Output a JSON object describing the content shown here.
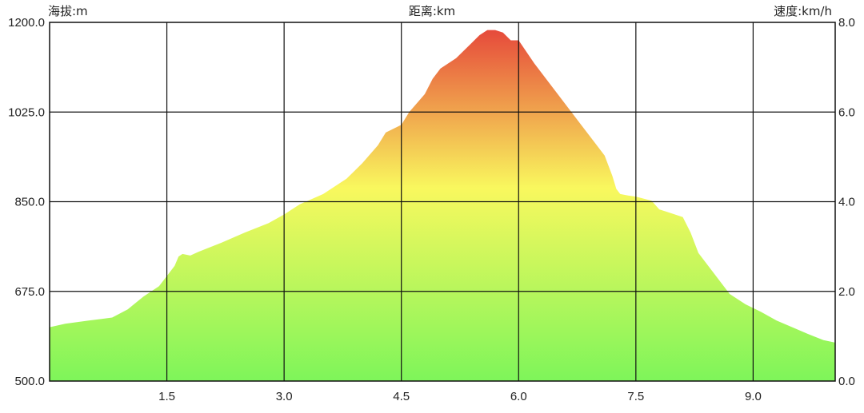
{
  "chart_data": {
    "type": "area",
    "left_axis_label": "海拔:m",
    "x_axis_label": "距离:km",
    "right_axis_label": "速度:km/h",
    "left_axis_range": [
      500,
      1200
    ],
    "left_ticks": [
      "1200.0",
      "1025.0",
      "850.0",
      "675.0",
      "500.0"
    ],
    "left_tick_values": [
      1200,
      1025,
      850,
      675,
      500
    ],
    "right_axis_range": [
      0,
      8
    ],
    "right_ticks": [
      "8.0",
      "6.0",
      "4.0",
      "2.0",
      "0.0"
    ],
    "right_tick_values": [
      8,
      6,
      4,
      2,
      0
    ],
    "x_range": [
      0,
      10.05
    ],
    "x_ticks": [
      "1.5",
      "3.0",
      "4.5",
      "6.0",
      "7.5",
      "9.0"
    ],
    "x_tick_values": [
      1.5,
      3.0,
      4.5,
      6.0,
      7.5,
      9.0
    ],
    "grid": true,
    "colors": {
      "low": "#7ef55a",
      "mid": "#f9f85e",
      "high": "#e64a3b",
      "grid": "#111111"
    },
    "series": [
      {
        "values_unit": "m",
        "x": [
          0,
          0.2,
          0.5,
          0.8,
          1.0,
          1.2,
          1.4,
          1.5,
          1.6,
          1.65,
          1.7,
          1.8,
          1.9,
          2.0,
          2.2,
          2.5,
          2.8,
          3.0,
          3.2,
          3.5,
          3.8,
          4.0,
          4.2,
          4.3,
          4.5,
          4.6,
          4.8,
          4.9,
          5.0,
          5.2,
          5.4,
          5.5,
          5.6,
          5.7,
          5.8,
          5.9,
          6.0,
          6.2,
          6.4,
          6.6,
          6.8,
          7.0,
          7.1,
          7.2,
          7.25,
          7.3,
          7.4,
          7.5,
          7.7,
          7.8,
          7.9,
          8.1,
          8.2,
          8.3,
          8.5,
          8.7,
          8.9,
          9.1,
          9.3,
          9.5,
          9.7,
          9.9,
          10.05
        ],
        "elevation": [
          605,
          612,
          618,
          624,
          640,
          665,
          685,
          705,
          725,
          743,
          748,
          745,
          752,
          758,
          770,
          790,
          808,
          825,
          845,
          865,
          895,
          925,
          960,
          985,
          1000,
          1025,
          1060,
          1090,
          1110,
          1130,
          1160,
          1175,
          1185,
          1185,
          1180,
          1165,
          1165,
          1120,
          1080,
          1040,
          1000,
          960,
          940,
          900,
          875,
          865,
          862,
          860,
          852,
          835,
          830,
          820,
          790,
          750,
          710,
          670,
          650,
          635,
          618,
          605,
          592,
          580,
          575
        ]
      }
    ]
  }
}
